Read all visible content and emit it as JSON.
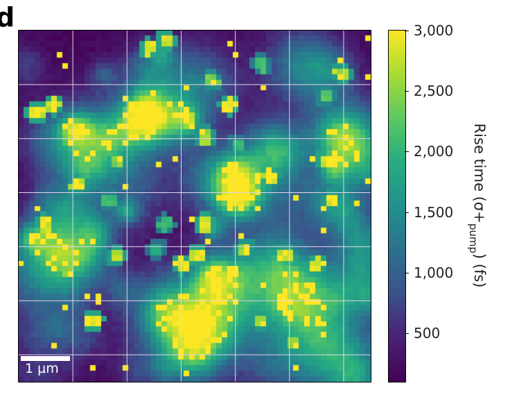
{
  "panel_label": "d",
  "scale_bar": {
    "label": "1 µm"
  },
  "chart_data": {
    "type": "heatmap",
    "title": "",
    "colormap": "viridis",
    "grid": true,
    "grid_color": "#e6d5e8",
    "color_range": [
      100,
      3000
    ],
    "colorbar": {
      "label_parts": {
        "main": "Rise time (σ+",
        "sub": "pump",
        "end": ") (fs)"
      },
      "ticks": [
        {
          "value": 500,
          "label": "500"
        },
        {
          "value": 1000,
          "label": "1,000"
        },
        {
          "value": 1500,
          "label": "1,500"
        },
        {
          "value": 2000,
          "label": "2,000"
        },
        {
          "value": 2500,
          "label": "2,500"
        },
        {
          "value": 3000,
          "label": "3,000"
        }
      ]
    },
    "hotspots_rise_time_fs": [
      {
        "col": 16,
        "row": 2,
        "value": 3000
      },
      {
        "col": 18,
        "row": 1,
        "value": 2950
      },
      {
        "col": 40,
        "row": 5,
        "value": 2800
      },
      {
        "col": 2,
        "row": 10,
        "value": 3000
      },
      {
        "col": 4,
        "row": 9,
        "value": 2900
      },
      {
        "col": 26,
        "row": 9,
        "value": 3000
      },
      {
        "col": 21,
        "row": 11,
        "value": 2800
      },
      {
        "col": 14,
        "row": 12,
        "value": 3000
      },
      {
        "col": 23,
        "row": 13,
        "value": 2700
      },
      {
        "col": 8,
        "row": 15,
        "value": 2300
      },
      {
        "col": 12,
        "row": 16,
        "value": 2600
      },
      {
        "col": 38,
        "row": 16,
        "value": 3000
      },
      {
        "col": 31,
        "row": 18,
        "value": 2900
      },
      {
        "col": 7,
        "row": 19,
        "value": 2700
      },
      {
        "col": 11,
        "row": 21,
        "value": 2200
      },
      {
        "col": 39,
        "row": 21,
        "value": 2800
      },
      {
        "col": 3,
        "row": 24,
        "value": 3000
      },
      {
        "col": 18,
        "row": 24,
        "value": 2200
      },
      {
        "col": 23,
        "row": 24,
        "value": 3000
      },
      {
        "col": 17,
        "row": 27,
        "value": 2000
      },
      {
        "col": 33,
        "row": 28,
        "value": 2900
      },
      {
        "col": 20,
        "row": 29,
        "value": 3000
      },
      {
        "col": 22,
        "row": 28,
        "value": 3000
      },
      {
        "col": 37,
        "row": 29,
        "value": 3000
      },
      {
        "col": 6,
        "row": 30,
        "value": 2600
      },
      {
        "col": 28,
        "row": 27,
        "value": 2700
      },
      {
        "col": 9,
        "row": 36,
        "value": 3000
      },
      {
        "col": 21,
        "row": 38,
        "value": 3000
      },
      {
        "col": 30,
        "row": 36,
        "value": 2800
      },
      {
        "col": 36,
        "row": 34,
        "value": 2500
      },
      {
        "col": 12,
        "row": 28,
        "value": 2800
      },
      {
        "col": 34,
        "row": 39,
        "value": 2700
      },
      {
        "col": 24,
        "row": 6,
        "value": 2500
      },
      {
        "col": 5,
        "row": 12,
        "value": 2000
      },
      {
        "col": 30,
        "row": 4,
        "value": 2200
      },
      {
        "col": 38,
        "row": 8,
        "value": 2400
      },
      {
        "col": 27,
        "row": 14,
        "value": 2100
      },
      {
        "col": 15,
        "row": 8,
        "value": 2100
      }
    ]
  }
}
